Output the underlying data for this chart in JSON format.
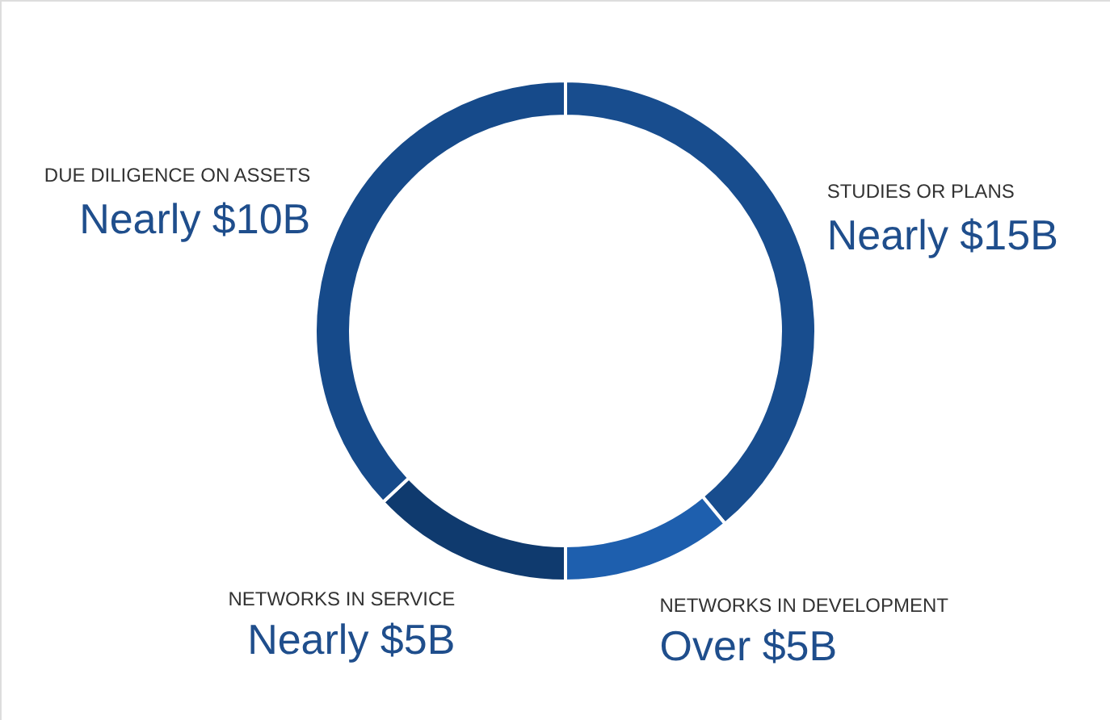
{
  "chart_data": {
    "type": "donut",
    "categories": [
      "STUDIES OR PLANS",
      "NETWORKS IN DEVELOPMENT",
      "NETWORKS IN SERVICE",
      "DUE DILIGENCE ON ASSETS"
    ],
    "values": [
      39,
      11,
      13,
      37
    ],
    "colors": [
      "#184d8e",
      "#1e5fae",
      "#0f3a6e",
      "#164a8a"
    ],
    "value_labels": [
      "Nearly $15B",
      "Over $5B",
      "Nearly $5B",
      "Nearly $10B"
    ]
  }
}
